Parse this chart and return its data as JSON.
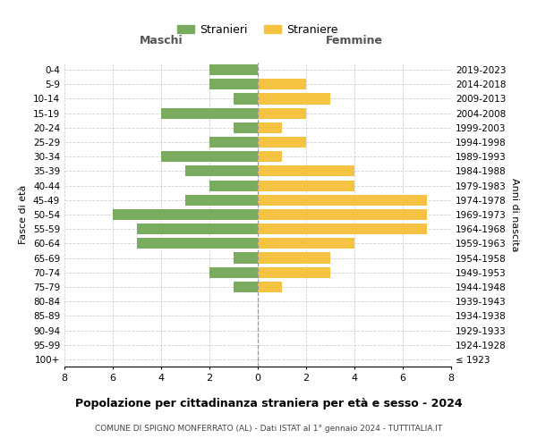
{
  "age_groups": [
    "100+",
    "95-99",
    "90-94",
    "85-89",
    "80-84",
    "75-79",
    "70-74",
    "65-69",
    "60-64",
    "55-59",
    "50-54",
    "45-49",
    "40-44",
    "35-39",
    "30-34",
    "25-29",
    "20-24",
    "15-19",
    "10-14",
    "5-9",
    "0-4"
  ],
  "birth_years": [
    "≤ 1923",
    "1924-1928",
    "1929-1933",
    "1934-1938",
    "1939-1943",
    "1944-1948",
    "1949-1953",
    "1954-1958",
    "1959-1963",
    "1964-1968",
    "1969-1973",
    "1974-1978",
    "1979-1983",
    "1984-1988",
    "1989-1993",
    "1994-1998",
    "1999-2003",
    "2004-2008",
    "2009-2013",
    "2014-2018",
    "2019-2023"
  ],
  "maschi": [
    0,
    0,
    0,
    0,
    0,
    1,
    2,
    1,
    5,
    5,
    6,
    3,
    2,
    3,
    4,
    2,
    1,
    4,
    1,
    2,
    2
  ],
  "femmine": [
    0,
    0,
    0,
    0,
    0,
    1,
    3,
    3,
    4,
    7,
    7,
    7,
    4,
    4,
    1,
    2,
    1,
    2,
    3,
    2,
    0
  ],
  "color_maschi": "#7aab5e",
  "color_femmine": "#f5c242",
  "grid_color": "#cccccc",
  "title": "Popolazione per cittadinanza straniera per età e sesso - 2024",
  "subtitle": "COMUNE DI SPIGNO MONFERRATO (AL) - Dati ISTAT al 1° gennaio 2024 - TUTTITALIA.IT",
  "xlabel_left": "Maschi",
  "xlabel_right": "Femmine",
  "ylabel": "Fasce di età",
  "ylabel_right": "Anni di nascita",
  "legend_maschi": "Stranieri",
  "legend_femmine": "Straniere",
  "xlim": 8
}
